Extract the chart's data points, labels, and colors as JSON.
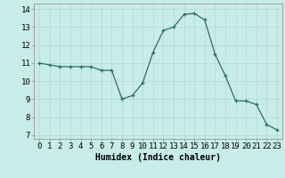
{
  "x": [
    0,
    1,
    2,
    3,
    4,
    5,
    6,
    7,
    8,
    9,
    10,
    11,
    12,
    13,
    14,
    15,
    16,
    17,
    18,
    19,
    20,
    21,
    22,
    23
  ],
  "y": [
    11.0,
    10.9,
    10.8,
    10.8,
    10.8,
    10.8,
    10.6,
    10.6,
    9.0,
    9.2,
    9.9,
    11.6,
    12.8,
    13.0,
    13.7,
    13.75,
    13.4,
    11.5,
    10.3,
    8.9,
    8.9,
    8.7,
    7.6,
    7.3
  ],
  "line_color": "#2d6e62",
  "marker": "+",
  "marker_size": 3,
  "bg_color": "#c8ece8",
  "grid_color": "#b0d8d4",
  "xlabel": "Humidex (Indice chaleur)",
  "ylabel_ticks": [
    7,
    8,
    9,
    10,
    11,
    12,
    13,
    14
  ],
  "xlim": [
    -0.5,
    23.5
  ],
  "ylim": [
    6.8,
    14.3
  ],
  "label_fontsize": 7,
  "tick_fontsize": 6.5
}
